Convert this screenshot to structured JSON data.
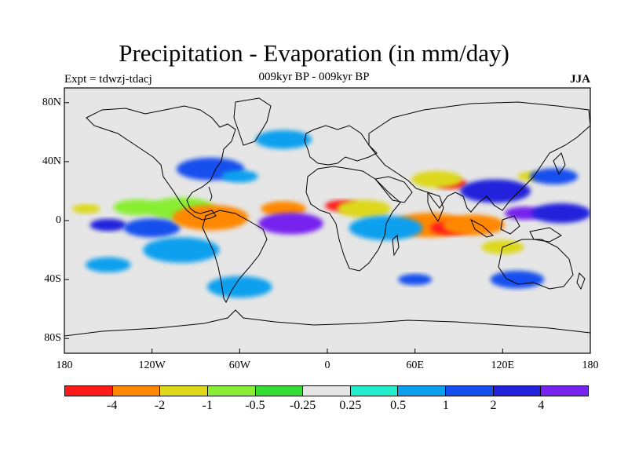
{
  "title": "Precipitation - Evaporation (in mm/day)",
  "subtitle": "009kyr BP - 009kyr BP",
  "left_label": "Expt = tdwzj-tdacj",
  "right_label": "JJA",
  "lat_ticks": [
    "80N",
    "40N",
    "0",
    "40S",
    "80S"
  ],
  "lon_ticks": [
    "180",
    "120W",
    "60W",
    "0",
    "60E",
    "120E",
    "180"
  ],
  "colorbar": {
    "colors": [
      "#ff1a1a",
      "#ff8800",
      "#ddd81a",
      "#88ee33",
      "#33dd33",
      "#e6e6e6",
      "#22eecc",
      "#0aa0ee",
      "#1450ee",
      "#2222dd",
      "#7722ee"
    ],
    "labels": [
      "-4",
      "-2",
      "-1",
      "-0.5",
      "-0.25",
      "0.25",
      "0.5",
      "1",
      "2",
      "4"
    ]
  },
  "chart_data": {
    "type": "heatmap",
    "title": "Precipitation - Evaporation (in mm/day)",
    "subtitle": "009kyr BP - 009kyr BP",
    "season": "JJA",
    "experiment": "Expt = tdwzj-tdacj",
    "xlim": [
      -180,
      180
    ],
    "ylim": [
      -90,
      90
    ],
    "x_ticks": [
      "180",
      "120W",
      "60W",
      "0",
      "60E",
      "120E",
      "180"
    ],
    "y_ticks": [
      "80N",
      "40N",
      "0",
      "40S",
      "80S"
    ],
    "levels": [
      -4,
      -2,
      -1,
      -0.5,
      -0.25,
      0.25,
      0.5,
      1,
      2,
      4
    ],
    "features": [
      {
        "lon": -165,
        "lat": 8,
        "level": "-1"
      },
      {
        "lon": -130,
        "lat": 9,
        "level": "-0.5"
      },
      {
        "lon": -100,
        "lat": 8,
        "level": "-0.5"
      },
      {
        "lon": -150,
        "lat": -3,
        "level": "2"
      },
      {
        "lon": -120,
        "lat": -5,
        "level": "1"
      },
      {
        "lon": -80,
        "lat": 2,
        "level": "-2"
      },
      {
        "lon": -30,
        "lat": 8,
        "level": "-2"
      },
      {
        "lon": -25,
        "lat": -2,
        "level": "4"
      },
      {
        "lon": 10,
        "lat": 10,
        "level": "-4"
      },
      {
        "lon": 25,
        "lat": 8,
        "level": "-1"
      },
      {
        "lon": 70,
        "lat": -3,
        "level": "-2"
      },
      {
        "lon": 85,
        "lat": -5,
        "level": "-4"
      },
      {
        "lon": 100,
        "lat": -3,
        "level": "-2"
      },
      {
        "lon": 85,
        "lat": 25,
        "level": "-4"
      },
      {
        "lon": 75,
        "lat": 28,
        "level": "-1"
      },
      {
        "lon": 115,
        "lat": 20,
        "level": "2"
      },
      {
        "lon": 135,
        "lat": 5,
        "level": "4"
      },
      {
        "lon": 160,
        "lat": 5,
        "level": "2"
      },
      {
        "lon": 140,
        "lat": 30,
        "level": "-1"
      },
      {
        "lon": 155,
        "lat": 30,
        "level": "1"
      },
      {
        "lon": -80,
        "lat": 35,
        "level": "1"
      },
      {
        "lon": -60,
        "lat": 30,
        "level": "0.5"
      },
      {
        "lon": -30,
        "lat": 55,
        "level": "0.5"
      },
      {
        "lon": -100,
        "lat": -20,
        "level": "0.5"
      },
      {
        "lon": -150,
        "lat": -30,
        "level": "0.5"
      },
      {
        "lon": -60,
        "lat": -45,
        "level": "0.5"
      },
      {
        "lon": 60,
        "lat": -40,
        "level": "1"
      },
      {
        "lon": 130,
        "lat": -40,
        "level": "1"
      },
      {
        "lon": 40,
        "lat": -5,
        "level": "0.5"
      },
      {
        "lon": 120,
        "lat": -18,
        "level": "-1"
      }
    ]
  }
}
